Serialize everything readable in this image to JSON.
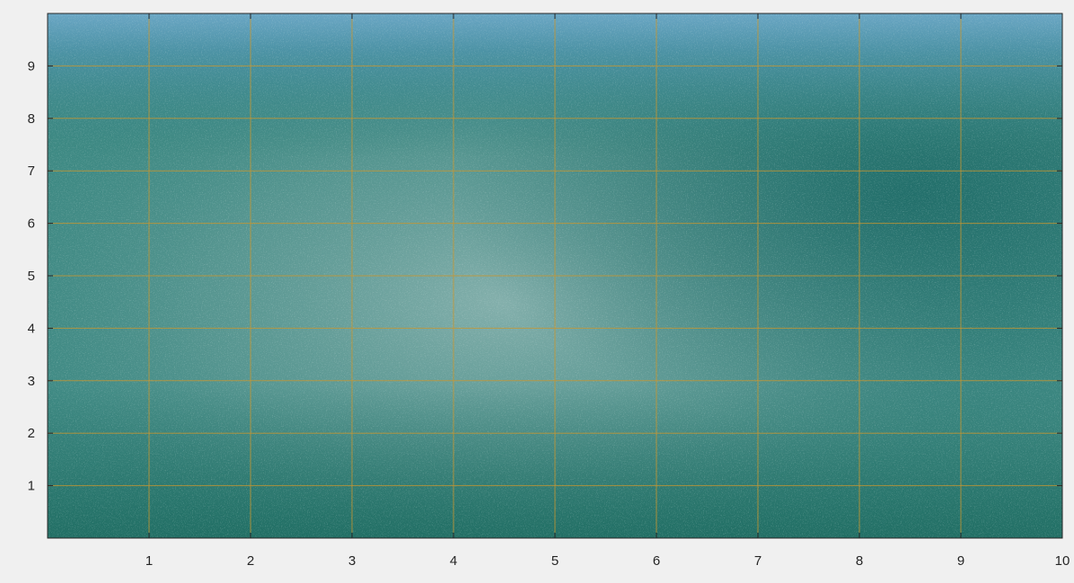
{
  "image": {
    "subject": "water",
    "colors": {
      "deep": "#1f6b63",
      "mid": "#3f8a84",
      "light": "#8fb6b6",
      "sky": "#5a98b8",
      "grid": "#c8962f",
      "axis": "#262626",
      "background": "#f0f0f0"
    }
  },
  "axes": {
    "xlim": [
      0,
      10
    ],
    "ylim": [
      0,
      10
    ],
    "xticks": [
      "1",
      "2",
      "3",
      "4",
      "5",
      "6",
      "7",
      "8",
      "9",
      "10"
    ],
    "yticks": [
      "1",
      "2",
      "3",
      "4",
      "5",
      "6",
      "7",
      "8",
      "9"
    ],
    "grid": true
  }
}
